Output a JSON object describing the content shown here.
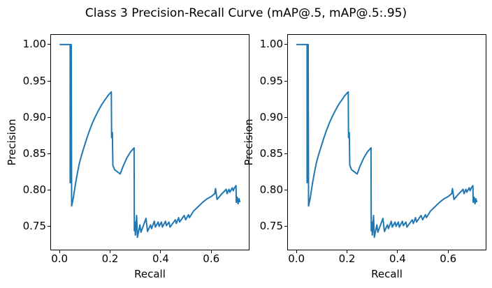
{
  "figure": {
    "title": "Class 3 Precision-Recall Curve (mAP@.5, mAP@.5:.95)",
    "background": "#ffffff",
    "spine_color": "#000000"
  },
  "chart_data": {
    "type": "line",
    "title": "Class 3 Precision-Recall Curve (mAP@.5, mAP@.5:.95)",
    "grid": false,
    "legend_position": "none",
    "xlim": [
      -0.0336,
      0.7486
    ],
    "ylim": [
      0.718,
      1.0133
    ],
    "xticks": {
      "values": [
        0.0,
        0.2,
        0.4,
        0.6
      ],
      "labels": [
        "0.0",
        "0.2",
        "0.4",
        "0.6"
      ]
    },
    "yticks": {
      "values": [
        0.75,
        0.8,
        0.85,
        0.9,
        0.95,
        1.0
      ],
      "labels": [
        "0.75",
        "0.80",
        "0.85",
        "0.90",
        "0.95",
        "1.00"
      ]
    },
    "subplots": [
      {
        "xlabel": "Recall",
        "ylabel": "Precision"
      },
      {
        "xlabel": "Recall",
        "ylabel": "Precision"
      }
    ],
    "series": [
      {
        "name": "precision-recall-curve",
        "color": "#1f77b4",
        "line_width": 2,
        "points": [
          [
            0.002,
            1.0
          ],
          [
            0.042,
            1.0
          ],
          [
            0.042,
            0.81
          ],
          [
            0.0445,
            1.0
          ],
          [
            0.0465,
            1.0
          ],
          [
            0.048,
            0.778
          ],
          [
            0.055,
            0.79
          ],
          [
            0.062,
            0.806
          ],
          [
            0.07,
            0.822
          ],
          [
            0.078,
            0.836
          ],
          [
            0.088,
            0.849
          ],
          [
            0.098,
            0.86
          ],
          [
            0.108,
            0.871
          ],
          [
            0.118,
            0.881
          ],
          [
            0.13,
            0.892
          ],
          [
            0.142,
            0.901
          ],
          [
            0.155,
            0.91
          ],
          [
            0.168,
            0.918
          ],
          [
            0.18,
            0.924
          ],
          [
            0.192,
            0.93
          ],
          [
            0.205,
            0.935
          ],
          [
            0.206,
            0.872
          ],
          [
            0.209,
            0.879
          ],
          [
            0.211,
            0.834
          ],
          [
            0.218,
            0.828
          ],
          [
            0.24,
            0.822
          ],
          [
            0.252,
            0.833
          ],
          [
            0.266,
            0.844
          ],
          [
            0.28,
            0.852
          ],
          [
            0.295,
            0.858
          ],
          [
            0.296,
            0.744
          ],
          [
            0.298,
            0.756
          ],
          [
            0.3,
            0.738
          ],
          [
            0.305,
            0.765
          ],
          [
            0.308,
            0.735
          ],
          [
            0.318,
            0.752
          ],
          [
            0.322,
            0.742
          ],
          [
            0.342,
            0.761
          ],
          [
            0.348,
            0.743
          ],
          [
            0.36,
            0.752
          ],
          [
            0.364,
            0.747
          ],
          [
            0.375,
            0.757
          ],
          [
            0.379,
            0.749
          ],
          [
            0.39,
            0.756
          ],
          [
            0.394,
            0.75
          ],
          [
            0.403,
            0.756
          ],
          [
            0.407,
            0.749
          ],
          [
            0.419,
            0.757
          ],
          [
            0.423,
            0.751
          ],
          [
            0.433,
            0.756
          ],
          [
            0.437,
            0.749
          ],
          [
            0.458,
            0.759
          ],
          [
            0.462,
            0.754
          ],
          [
            0.471,
            0.762
          ],
          [
            0.475,
            0.756
          ],
          [
            0.493,
            0.765
          ],
          [
            0.499,
            0.759
          ],
          [
            0.51,
            0.766
          ],
          [
            0.514,
            0.762
          ],
          [
            0.53,
            0.771
          ],
          [
            0.548,
            0.777
          ],
          [
            0.566,
            0.783
          ],
          [
            0.584,
            0.788
          ],
          [
            0.6,
            0.791
          ],
          [
            0.614,
            0.795
          ],
          [
            0.617,
            0.802
          ],
          [
            0.623,
            0.787
          ],
          [
            0.64,
            0.794
          ],
          [
            0.654,
            0.799
          ],
          [
            0.659,
            0.801
          ],
          [
            0.663,
            0.795
          ],
          [
            0.67,
            0.801
          ],
          [
            0.674,
            0.797
          ],
          [
            0.683,
            0.803
          ],
          [
            0.687,
            0.799
          ],
          [
            0.692,
            0.803
          ],
          [
            0.698,
            0.806
          ],
          [
            0.699,
            0.783
          ],
          [
            0.703,
            0.79
          ],
          [
            0.706,
            0.781
          ],
          [
            0.71,
            0.788
          ],
          [
            0.713,
            0.784
          ]
        ]
      }
    ]
  }
}
